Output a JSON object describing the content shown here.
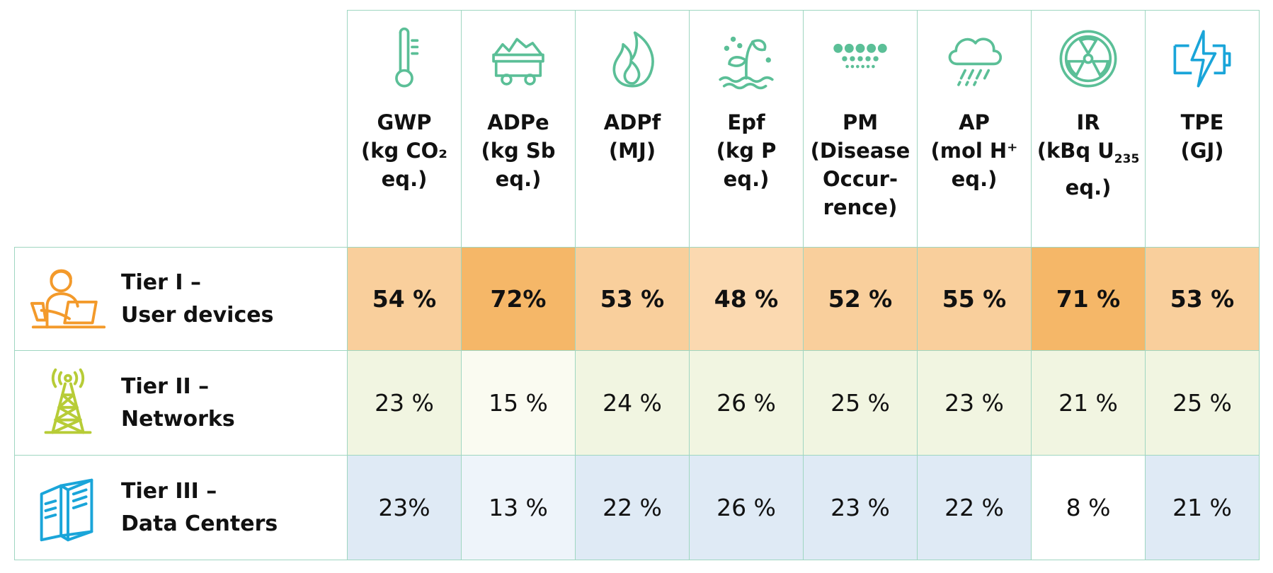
{
  "colors": {
    "border": "#9fd6c1",
    "indicator_icon": "#5bbf97",
    "tpe_icon": "#1aa5d9",
    "tier1_icon": "#f39a2b",
    "tier2_icon": "#b7cc37",
    "tier3_icon": "#1aa5d9"
  },
  "indicators": [
    {
      "label": "GWP",
      "unit": "(kg CO₂ eq.)",
      "icon": "thermometer-icon"
    },
    {
      "label": "ADPe",
      "unit": "(kg Sb eq.)",
      "icon": "mining-cart-icon"
    },
    {
      "label": "ADPf",
      "unit": "(MJ)",
      "icon": "flame-icon"
    },
    {
      "label": "Epf",
      "unit": "(kg P eq.)",
      "icon": "plant-water-icon"
    },
    {
      "label": "PM",
      "unit": "(Disease Occur- rence)",
      "icon": "particles-icon"
    },
    {
      "label": "AP",
      "unit": "(mol H⁺ eq.)",
      "icon": "acid-rain-icon"
    },
    {
      "label": "IR",
      "unit_main": "(kBq U",
      "unit_sub": "235",
      "unit_tail": "eq.)",
      "icon": "radiation-icon"
    },
    {
      "label": "TPE",
      "unit": "(GJ)",
      "icon": "energy-battery-icon"
    }
  ],
  "tiers": [
    {
      "name": "Tier I –",
      "subname": "User devices",
      "icon": "user-laptop-icon",
      "bold": true,
      "values": [
        "54 %",
        "72%",
        "53 %",
        "48 %",
        "52 %",
        "55 %",
        "71 %",
        "53 %"
      ],
      "cell_colors": [
        "#f9cf9c",
        "#f5b768",
        "#f9cf9c",
        "#fbd9b0",
        "#f9cf9c",
        "#f9cf9c",
        "#f5b768",
        "#f9cf9c"
      ]
    },
    {
      "name": "Tier II –",
      "subname": "Networks",
      "icon": "antenna-tower-icon",
      "bold": false,
      "values": [
        "23 %",
        "15 %",
        "24 %",
        "26 %",
        "25 %",
        "23 %",
        "21 %",
        "25 %"
      ],
      "cell_colors": [
        "#f1f5e1",
        "#fafbf1",
        "#f1f5e1",
        "#f1f5e1",
        "#f1f5e1",
        "#f1f5e1",
        "#f1f5e1",
        "#f1f5e1"
      ]
    },
    {
      "name": "Tier III –",
      "subname": "Data Centers",
      "icon": "server-rack-icon",
      "bold": false,
      "values": [
        "23%",
        "13 %",
        "22 %",
        "26 %",
        "23 %",
        "22 %",
        "8 %",
        "21 %"
      ],
      "cell_colors": [
        "#dfeaf5",
        "#eef4fa",
        "#dfeaf5",
        "#dfeaf5",
        "#dfeaf5",
        "#dfeaf5",
        "#ffffff",
        "#dfeaf5"
      ]
    }
  ],
  "chart_data": {
    "type": "table",
    "columns": [
      "GWP",
      "ADPe",
      "ADPf",
      "Epf",
      "PM",
      "AP",
      "IR",
      "TPE"
    ],
    "rows": [
      "Tier I – User devices",
      "Tier II – Networks",
      "Tier III – Data Centers"
    ],
    "values": [
      [
        54,
        72,
        53,
        48,
        52,
        55,
        71,
        53
      ],
      [
        23,
        15,
        24,
        26,
        25,
        23,
        21,
        25
      ],
      [
        23,
        13,
        22,
        26,
        23,
        22,
        8,
        21
      ]
    ]
  }
}
